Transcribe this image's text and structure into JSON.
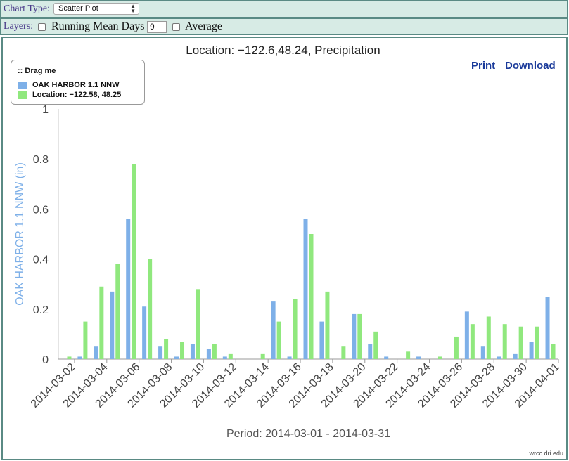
{
  "controls": {
    "chart_type_label": "Chart Type:",
    "chart_type_value": "Scatter Plot",
    "layers_label": "Layers:",
    "running_mean_label": "Running Mean Days",
    "running_mean_value": "9",
    "average_label": "Average"
  },
  "chart_actions": {
    "print": "Print",
    "download": "Download"
  },
  "legend": {
    "title": ":: Drag me"
  },
  "watermark": "wrcc.dri.edu",
  "colors": {
    "series1": "#7eb0e8",
    "series2": "#90e87e",
    "axis_label": "#7eb0e8"
  },
  "chart_data": {
    "type": "bar",
    "title": "Location: −122.6,48.24, Precipitation",
    "xlabel": "Period: 2014-03-01 - 2014-03-31",
    "ylabel": "OAK HARBOR 1.1 NNW (in)",
    "ylim": [
      0,
      1
    ],
    "yticks": [
      "0",
      "0.2",
      "0.4",
      "0.6",
      "0.8",
      "1"
    ],
    "categories": [
      "2014-03-01",
      "2014-03-02",
      "2014-03-03",
      "2014-03-04",
      "2014-03-05",
      "2014-03-06",
      "2014-03-07",
      "2014-03-08",
      "2014-03-09",
      "2014-03-10",
      "2014-03-11",
      "2014-03-12",
      "2014-03-13",
      "2014-03-14",
      "2014-03-15",
      "2014-03-16",
      "2014-03-17",
      "2014-03-18",
      "2014-03-19",
      "2014-03-20",
      "2014-03-21",
      "2014-03-22",
      "2014-03-23",
      "2014-03-24",
      "2014-03-25",
      "2014-03-26",
      "2014-03-27",
      "2014-03-28",
      "2014-03-29",
      "2014-03-30",
      "2014-03-31"
    ],
    "xtick_labels": [
      "2014-03-02",
      "2014-03-04",
      "2014-03-06",
      "2014-03-08",
      "2014-03-10",
      "2014-03-12",
      "2014-03-14",
      "2014-03-16",
      "2014-03-18",
      "2014-03-20",
      "2014-03-22",
      "2014-03-24",
      "2014-03-26",
      "2014-03-28",
      "2014-03-30",
      "2014-04-01"
    ],
    "grid": false,
    "legend_position": "top-left",
    "series": [
      {
        "name": "OAK HARBOR 1.1 NNW",
        "values": [
          0,
          0.01,
          0.05,
          0.27,
          0.56,
          0.21,
          0.05,
          0.01,
          0.06,
          0.04,
          0.01,
          0,
          0,
          0.23,
          0.01,
          0.56,
          0.15,
          0,
          0.18,
          0.06,
          0.01,
          0,
          0.01,
          0,
          0,
          0.19,
          0.05,
          0.01,
          0.02,
          0.07,
          0.25
        ]
      },
      {
        "name": "Location: −122.58, 48.25",
        "values": [
          0.01,
          0.15,
          0.29,
          0.38,
          0.78,
          0.4,
          0.08,
          0.07,
          0.28,
          0.06,
          0.02,
          0,
          0.02,
          0.15,
          0.24,
          0.5,
          0.27,
          0.05,
          0.18,
          0.11,
          0,
          0.03,
          0,
          0.01,
          0.09,
          0.14,
          0.17,
          0.14,
          0.13,
          0.13,
          0.06
        ]
      }
    ]
  }
}
